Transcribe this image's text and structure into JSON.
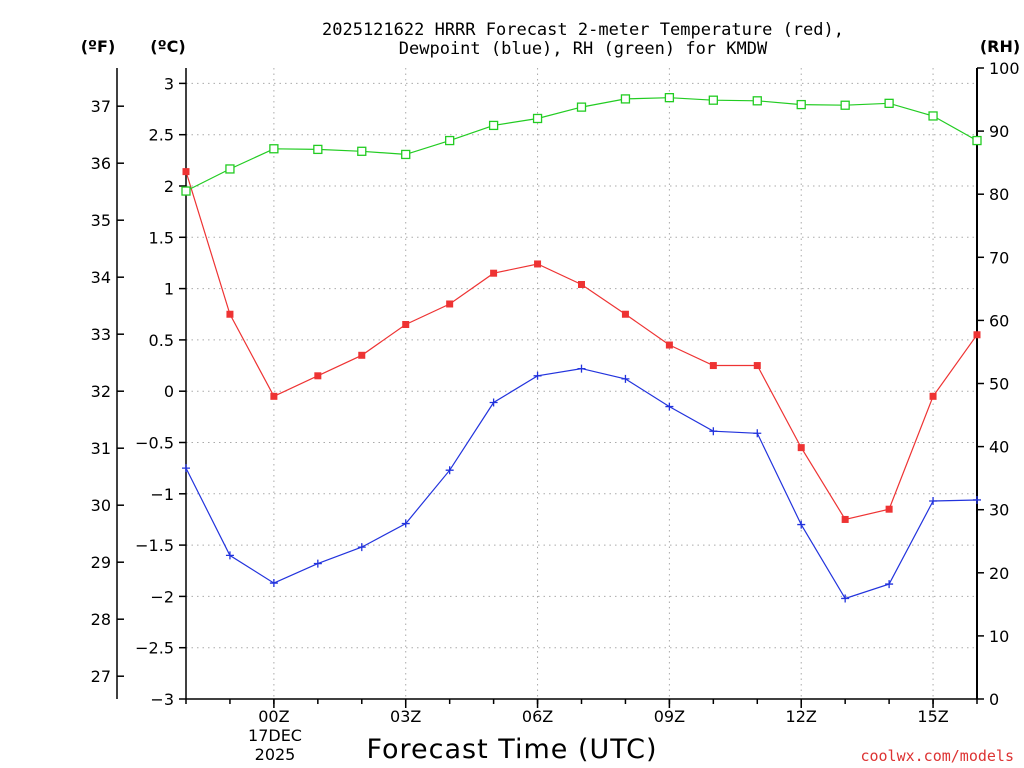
{
  "chart_data": {
    "type": "line",
    "title": "2025121622 HRRR Forecast 2-meter Temperature (red),",
    "subtitle": "Dewpoint (blue), RH (green) for KMDW",
    "xlabel": "Forecast Time (UTC)",
    "credit": "coolwx.com/models",
    "units": {
      "fahrenheit": "(ºF)",
      "celsius": "(ºC)",
      "rh": "(RH)"
    },
    "x": [
      22,
      23,
      24,
      25,
      26,
      27,
      28,
      29,
      30,
      31,
      32,
      33,
      34,
      35,
      36,
      37,
      38,
      39,
      40
    ],
    "xlim": [
      22,
      40
    ],
    "x_ticks": [
      {
        "x": 24,
        "label": "00Z"
      },
      {
        "x": 27,
        "label": "03Z"
      },
      {
        "x": 30,
        "label": "06Z"
      },
      {
        "x": 33,
        "label": "09Z"
      },
      {
        "x": 36,
        "label": "12Z"
      },
      {
        "x": 39,
        "label": "15Z"
      }
    ],
    "date_label": [
      "17DEC",
      "2025"
    ],
    "ylim_c": [
      -3,
      3.15
    ],
    "ylim_f": [
      26.6,
      37.67
    ],
    "ylim_rh": [
      0,
      100
    ],
    "y_ticks_c": [
      "3",
      "2.5",
      "2",
      "1.5",
      "1",
      "0.5",
      "0",
      "−0.5",
      "−1",
      "−1.5",
      "−2",
      "−2.5",
      "−3"
    ],
    "y_ticks_c_values": [
      3,
      2.5,
      2,
      1.5,
      1,
      0.5,
      0,
      -0.5,
      -1,
      -1.5,
      -2,
      -2.5,
      -3
    ],
    "y_ticks_f": [
      "37",
      "36",
      "35",
      "34",
      "33",
      "32",
      "31",
      "30",
      "29",
      "28",
      "27"
    ],
    "y_ticks_f_values": [
      37,
      36,
      35,
      34,
      33,
      32,
      31,
      30,
      29,
      28,
      27
    ],
    "y_ticks_rh": [
      "100",
      "90",
      "80",
      "70",
      "60",
      "50",
      "40",
      "30",
      "20",
      "10",
      "0"
    ],
    "y_ticks_rh_values": [
      100,
      90,
      80,
      70,
      60,
      50,
      40,
      30,
      20,
      10,
      0
    ],
    "series": [
      {
        "name": "Temperature",
        "axis": "c",
        "color": "#ee3333",
        "marker": "filled-square",
        "values": [
          2.14,
          0.75,
          -0.05,
          0.15,
          0.35,
          0.65,
          0.85,
          1.15,
          1.24,
          1.04,
          0.75,
          0.45,
          0.25,
          0.25,
          -0.55,
          -1.25,
          -1.15,
          -0.05,
          0.55
        ]
      },
      {
        "name": "Dewpoint",
        "axis": "c",
        "color": "#2233dd",
        "marker": "plus",
        "values": [
          -0.75,
          -1.6,
          -1.87,
          -1.68,
          -1.52,
          -1.29,
          -0.77,
          -0.11,
          0.15,
          0.22,
          0.12,
          -0.15,
          -0.39,
          -0.41,
          -1.3,
          -2.02,
          -1.88,
          -1.07,
          -1.06
        ]
      },
      {
        "name": "RH",
        "axis": "rh",
        "color": "#22cc22",
        "marker": "open-square",
        "values": [
          80.5,
          84,
          87.2,
          87.1,
          86.8,
          86.3,
          88.5,
          90.9,
          92,
          93.8,
          95.1,
          95.3,
          94.9,
          94.8,
          94.2,
          94.1,
          94.4,
          92.4,
          88.5
        ]
      }
    ]
  }
}
